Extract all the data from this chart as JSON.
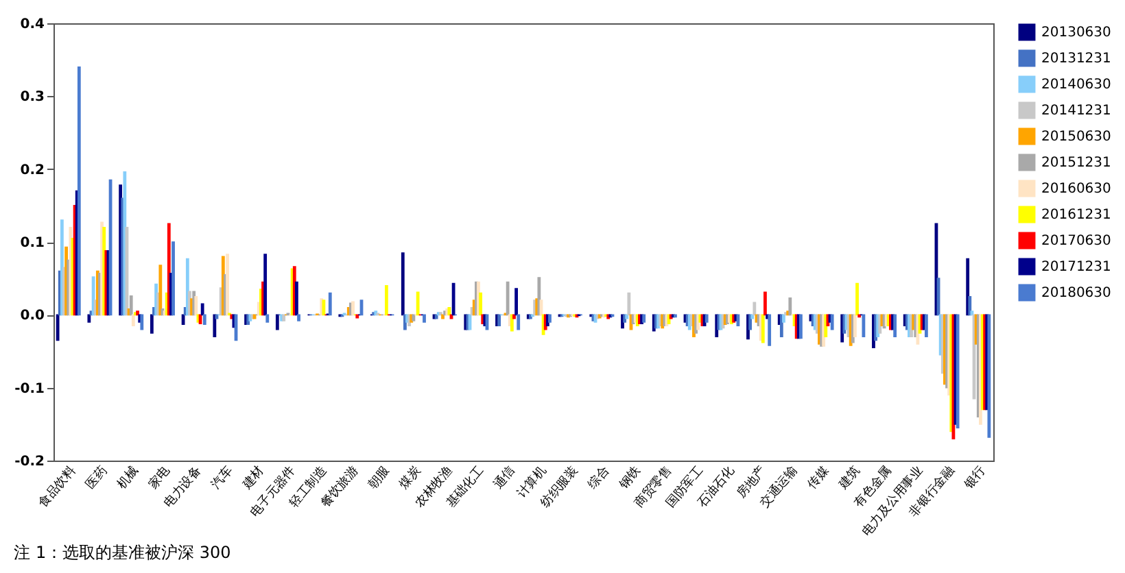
{
  "chart_data": {
    "type": "bar",
    "categories": [
      "食品饮料",
      "医药",
      "机械",
      "家电",
      "电力设备",
      "汽车",
      "建材",
      "电子元器件",
      "轻工制造",
      "餐饮旅游",
      "朝服",
      "煤炭",
      "农林牧渔",
      "基础化工",
      "通信",
      "计算机",
      "纺织服装",
      "综合",
      "钢铁",
      "商贸零售",
      "国防军工",
      "石油石化",
      "房地产",
      "交通运输",
      "传媒",
      "建筑",
      "有色金属",
      "电力及公用事业",
      "非银行金融",
      "银行"
    ],
    "series": [
      {
        "name": "20130630",
        "color": "#000080",
        "values": [
          -0.035,
          -0.01,
          0.178,
          -0.025,
          -0.013,
          -0.03,
          -0.013,
          -0.02,
          0,
          -0.002,
          0,
          0.085,
          -0.005,
          -0.02,
          -0.015,
          -0.005,
          -0.002,
          -0.002,
          -0.018,
          -0.022,
          -0.01,
          -0.03,
          -0.033,
          -0.013,
          -0.008,
          -0.037,
          -0.045,
          -0.015,
          0.125,
          0.077
        ]
      },
      {
        "name": "20131231",
        "color": "#4472c4",
        "values": [
          0.06,
          0.005,
          0.16,
          0.01,
          0.01,
          -0.005,
          -0.013,
          0,
          0,
          -0.002,
          0.003,
          -0.02,
          -0.005,
          -0.02,
          -0.015,
          -0.005,
          -0.002,
          -0.008,
          -0.01,
          -0.018,
          -0.015,
          -0.02,
          -0.02,
          -0.03,
          -0.015,
          -0.025,
          -0.035,
          -0.02,
          0.05,
          0.025
        ]
      },
      {
        "name": "20140630",
        "color": "#87cefa",
        "values": [
          0.13,
          0.052,
          0.196,
          0.042,
          0.077,
          0,
          -0.008,
          -0.008,
          0,
          0.002,
          0.005,
          -0.01,
          0.003,
          -0.02,
          0,
          -0.002,
          -0.001,
          -0.01,
          -0.005,
          -0.018,
          -0.02,
          -0.02,
          -0.005,
          -0.01,
          -0.02,
          -0.02,
          -0.03,
          -0.03,
          -0.055,
          0.005
        ]
      },
      {
        "name": "20141231",
        "color": "#c8c8c8",
        "values": [
          0.065,
          0.02,
          0.12,
          0.03,
          0.032,
          0.037,
          -0.005,
          -0.008,
          0,
          0,
          0.002,
          -0.015,
          0.003,
          0.01,
          0,
          0.02,
          -0.002,
          -0.005,
          0.03,
          -0.015,
          -0.015,
          -0.018,
          0.017,
          0.003,
          -0.025,
          -0.03,
          -0.025,
          -0.03,
          -0.08,
          -0.115
        ]
      },
      {
        "name": "20150630",
        "color": "#ffa500",
        "values": [
          0.093,
          0.06,
          0.008,
          0.068,
          0.022,
          0.08,
          -0.005,
          0,
          0.001,
          0.01,
          0,
          -0.01,
          -0.005,
          0.02,
          0.002,
          0.022,
          -0.003,
          -0.004,
          -0.02,
          -0.018,
          -0.03,
          -0.013,
          -0.01,
          0.005,
          -0.04,
          -0.042,
          -0.015,
          -0.02,
          -0.095,
          -0.04
        ]
      },
      {
        "name": "20151231",
        "color": "#a9a9a9",
        "values": [
          0.075,
          0.057,
          0.026,
          0.008,
          0.032,
          0.055,
          0,
          0.002,
          0,
          0.016,
          0,
          -0.008,
          0.005,
          0.045,
          0.045,
          0.051,
          -0.002,
          -0.002,
          -0.012,
          -0.015,
          -0.025,
          -0.012,
          -0.015,
          0.023,
          -0.043,
          -0.038,
          -0.018,
          -0.03,
          -0.1,
          -0.14
        ]
      },
      {
        "name": "20160630",
        "color": "#ffe4c4",
        "values": [
          0.12,
          0.127,
          -0.015,
          0.005,
          0.025,
          0.083,
          0.017,
          0,
          0.022,
          0.018,
          0,
          0,
          0.008,
          0.045,
          -0.015,
          0.02,
          -0.001,
          -0.003,
          -0.01,
          -0.015,
          -0.02,
          -0.01,
          -0.035,
          0,
          -0.043,
          -0.03,
          -0.015,
          -0.04,
          -0.11,
          -0.15
        ]
      },
      {
        "name": "20161231",
        "color": "#ffff00",
        "values": [
          0.105,
          0.12,
          0.003,
          0.03,
          -0.01,
          0.002,
          0.035,
          0.063,
          0.02,
          0,
          0.04,
          0.031,
          0.01,
          0.03,
          -0.022,
          -0.027,
          -0.002,
          -0.002,
          -0.015,
          -0.012,
          -0.01,
          -0.012,
          -0.038,
          -0.015,
          -0.03,
          0.043,
          -0.015,
          -0.025,
          -0.16,
          -0.13
        ]
      },
      {
        "name": "20170630",
        "color": "#ff0000",
        "values": [
          0.15,
          0.088,
          0.005,
          0.125,
          -0.012,
          -0.005,
          0.045,
          0.066,
          0,
          -0.004,
          0,
          0,
          -0.005,
          -0.012,
          -0.005,
          -0.02,
          -0.003,
          -0.005,
          -0.012,
          -0.005,
          -0.015,
          -0.01,
          0.031,
          -0.032,
          -0.015,
          -0.003,
          -0.02,
          -0.02,
          -0.17,
          -0.13
        ]
      },
      {
        "name": "20171231",
        "color": "#00008b",
        "values": [
          0.17,
          0.088,
          -0.01,
          0.057,
          0.015,
          -0.017,
          0.083,
          0.045,
          0.001,
          0,
          0,
          0,
          0.043,
          -0.015,
          0.036,
          -0.015,
          -0.001,
          -0.003,
          -0.012,
          -0.003,
          -0.015,
          -0.008,
          -0.005,
          -0.032,
          -0.01,
          0,
          -0.02,
          -0.02,
          -0.15,
          -0.13
        ]
      },
      {
        "name": "20180630",
        "color": "#4a7bd0",
        "values": [
          0.34,
          0.185,
          -0.02,
          0.1,
          -0.013,
          -0.035,
          -0.01,
          -0.008,
          0.03,
          0.02,
          0,
          -0.01,
          0,
          -0.02,
          -0.02,
          -0.01,
          0,
          -0.002,
          -0.01,
          -0.003,
          -0.01,
          -0.015,
          -0.042,
          -0.032,
          -0.02,
          -0.03,
          -0.03,
          -0.03,
          -0.155,
          -0.168
        ]
      }
    ],
    "ylim": [
      -0.2,
      0.4
    ],
    "yticks": [
      -0.2,
      -0.1,
      {
        "value": 0,
        "label": "0.0"
      },
      0.1,
      0.2,
      0.3,
      0.4
    ],
    "grid": false,
    "legend": "right",
    "annotations": [
      "注 1：选取的基准被沪深 300"
    ]
  }
}
